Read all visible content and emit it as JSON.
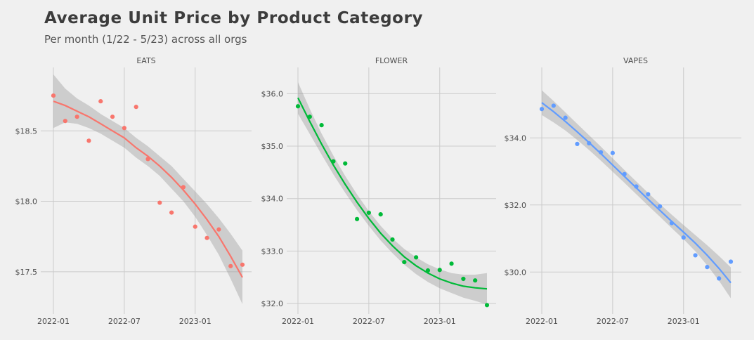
{
  "chart_data": {
    "type": "scatter",
    "title": "Average Unit Price by Product Category",
    "subtitle": "Per month (1/22 - 5/23) across all orgs",
    "x_months": [
      "2022-01",
      "2022-02",
      "2022-03",
      "2022-04",
      "2022-05",
      "2022-06",
      "2022-07",
      "2022-08",
      "2022-09",
      "2022-10",
      "2022-11",
      "2022-12",
      "2023-01",
      "2023-02",
      "2023-03",
      "2023-04",
      "2023-05"
    ],
    "xtick_labels": [
      "2022-01",
      "2022-07",
      "2023-01"
    ],
    "panels": [
      {
        "name": "EATS",
        "color": "#f8766d",
        "ylim": [
          17.2,
          18.95
        ],
        "yticks": [
          17.5,
          18.0,
          18.5
        ],
        "ytick_labels": [
          "$17.5",
          "$18.0",
          "$18.5"
        ],
        "values": [
          18.75,
          18.57,
          18.6,
          18.43,
          18.71,
          18.6,
          18.52,
          18.67,
          18.3,
          17.99,
          17.92,
          18.1,
          17.82,
          17.74,
          17.8,
          17.54,
          17.55
        ],
        "trend": [
          18.71,
          18.68,
          18.64,
          18.6,
          18.55,
          18.5,
          18.45,
          18.38,
          18.32,
          18.25,
          18.17,
          18.08,
          17.98,
          17.87,
          17.75,
          17.61,
          17.46
        ],
        "band_upper": [
          18.9,
          18.8,
          18.73,
          18.68,
          18.62,
          18.57,
          18.52,
          18.45,
          18.39,
          18.32,
          18.25,
          18.16,
          18.07,
          17.98,
          17.88,
          17.77,
          17.65
        ],
        "band_lower": [
          18.52,
          18.56,
          18.55,
          18.52,
          18.48,
          18.43,
          18.38,
          18.31,
          18.25,
          18.18,
          18.09,
          18.0,
          17.89,
          17.76,
          17.62,
          17.45,
          17.27
        ]
      },
      {
        "name": "FLOWER",
        "color": "#00ba38",
        "ylim": [
          31.8,
          36.5
        ],
        "yticks": [
          32.0,
          33.0,
          34.0,
          35.0,
          36.0
        ],
        "ytick_labels": [
          "$32.0",
          "$33.0",
          "$34.0",
          "$35.0",
          "$36.0"
        ],
        "values": [
          35.76,
          35.56,
          35.4,
          34.71,
          34.67,
          33.61,
          33.73,
          33.7,
          33.22,
          32.79,
          32.88,
          32.63,
          32.64,
          32.76,
          32.47,
          32.44,
          31.97
        ],
        "trend": [
          35.92,
          35.47,
          35.04,
          34.64,
          34.27,
          33.93,
          33.62,
          33.34,
          33.1,
          32.89,
          32.72,
          32.58,
          32.47,
          32.39,
          32.33,
          32.3,
          32.28
        ],
        "band_upper": [
          36.22,
          35.71,
          35.24,
          34.82,
          34.43,
          34.08,
          33.76,
          33.48,
          33.24,
          33.04,
          32.88,
          32.75,
          32.65,
          32.58,
          32.55,
          32.55,
          32.58
        ],
        "band_lower": [
          35.62,
          35.23,
          34.84,
          34.46,
          34.11,
          33.78,
          33.48,
          33.2,
          32.96,
          32.74,
          32.56,
          32.41,
          32.29,
          32.2,
          32.11,
          32.05,
          31.98
        ]
      },
      {
        "name": "VAPES",
        "color": "#619cff",
        "ylim": [
          28.75,
          36.1
        ],
        "yticks": [
          30.0,
          32.0,
          34.0
        ],
        "ytick_labels": [
          "$30.0",
          "$32.0",
          "$34.0"
        ],
        "values": [
          34.86,
          34.96,
          34.6,
          33.82,
          33.84,
          33.57,
          33.55,
          32.92,
          32.55,
          32.32,
          31.96,
          31.46,
          31.03,
          30.5,
          30.15,
          29.81,
          30.31
        ],
        "trend": [
          35.05,
          34.78,
          34.49,
          34.18,
          33.86,
          33.53,
          33.19,
          32.85,
          32.51,
          32.17,
          31.84,
          31.51,
          31.19,
          30.86,
          30.5,
          30.11,
          29.68
        ],
        "band_upper": [
          35.42,
          35.1,
          34.76,
          34.42,
          34.08,
          33.74,
          33.39,
          33.04,
          32.7,
          32.36,
          32.03,
          31.71,
          31.4,
          31.1,
          30.8,
          30.48,
          30.14
        ],
        "band_lower": [
          34.68,
          34.46,
          34.22,
          33.94,
          33.64,
          33.32,
          32.99,
          32.66,
          32.32,
          31.98,
          31.65,
          31.31,
          30.98,
          30.62,
          30.2,
          29.74,
          29.22
        ]
      }
    ],
    "grid": true,
    "legend": "none"
  }
}
